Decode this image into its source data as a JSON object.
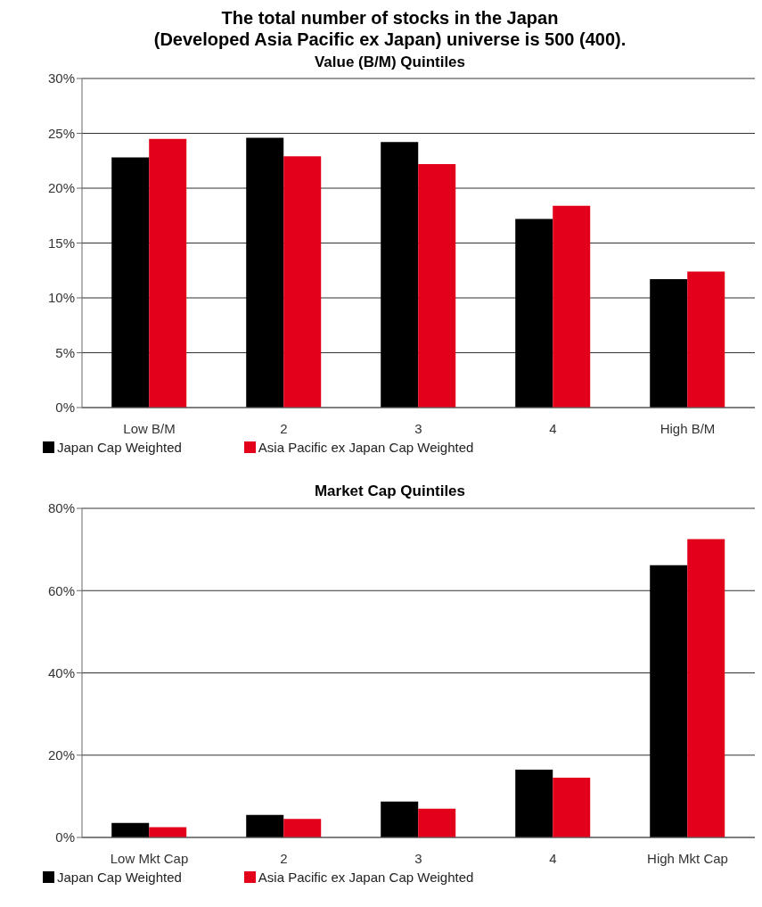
{
  "chart_data": [
    {
      "type": "bar",
      "title": "The total number of stocks in the Japan\n(Developed Asia Pacific ex Japan) universe is 500 (400).",
      "subtitle": "Value (B/M) Quintiles",
      "categories": [
        "Low B/M",
        "2",
        "3",
        "4",
        "High B/M"
      ],
      "series": [
        {
          "name": "Japan Cap Weighted",
          "color": "#000000",
          "values": [
            22.8,
            24.6,
            24.2,
            17.2,
            11.7
          ]
        },
        {
          "name": "Asia Pacific ex Japan Cap Weighted",
          "color": "#e2001a",
          "values": [
            24.5,
            22.9,
            22.2,
            18.4,
            12.4
          ]
        }
      ],
      "ylim": [
        0,
        30
      ],
      "yticks": [
        {
          "value": 0,
          "label": "0%"
        },
        {
          "value": 5,
          "label": "5%"
        },
        {
          "value": 10,
          "label": "10%"
        },
        {
          "value": 15,
          "label": "15%"
        },
        {
          "value": 20,
          "label": "20%"
        },
        {
          "value": 25,
          "label": "25%"
        },
        {
          "value": 30,
          "label": "30%"
        }
      ],
      "grid": "y",
      "legend": "bottom"
    },
    {
      "type": "bar",
      "title": "Market Cap Quintiles",
      "categories": [
        "Low Mkt Cap",
        "2",
        "3",
        "4",
        "High Mkt Cap"
      ],
      "series": [
        {
          "name": "Japan Cap Weighted",
          "color": "#000000",
          "values": [
            3.5,
            5.5,
            8.7,
            16.5,
            66.2
          ]
        },
        {
          "name": "Asia Pacific ex Japan Cap Weighted",
          "color": "#e2001a",
          "values": [
            2.5,
            4.5,
            7.0,
            14.5,
            72.5
          ]
        }
      ],
      "ylim": [
        0,
        80
      ],
      "yticks": [
        {
          "value": 0,
          "label": "0%"
        },
        {
          "value": 20,
          "label": "20%"
        },
        {
          "value": 40,
          "label": "40%"
        },
        {
          "value": 60,
          "label": "60%"
        },
        {
          "value": 80,
          "label": "80%"
        }
      ],
      "grid": "y",
      "legend": "bottom"
    }
  ]
}
